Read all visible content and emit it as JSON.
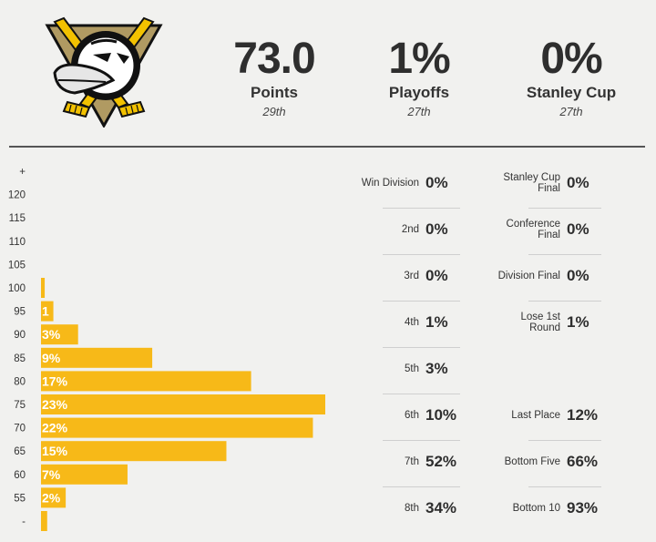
{
  "header": {
    "points": {
      "value": "73.0",
      "label": "Points",
      "rank": "29th"
    },
    "playoffs": {
      "value": "1%",
      "label": "Playoffs",
      "rank": "27th"
    },
    "cup": {
      "value": "0%",
      "label": "Stanley Cup",
      "rank": "27th"
    }
  },
  "colors": {
    "bar": "#f7b918",
    "logo_gold": "#b09a62",
    "logo_black": "#111111"
  },
  "chart_data": {
    "type": "bar",
    "orientation": "horizontal",
    "title": "",
    "xlabel": "",
    "ylabel": "",
    "tick_labels": [
      "+",
      "120",
      "115",
      "110",
      "105",
      "100",
      "95",
      "90",
      "85",
      "80",
      "75",
      "70",
      "65",
      "60",
      "55",
      "-"
    ],
    "categories": [
      "100",
      "95",
      "90",
      "85",
      "80",
      "75",
      "70",
      "65",
      "60",
      "55",
      "-"
    ],
    "values": [
      0.3,
      1,
      3,
      9,
      17,
      23,
      22,
      15,
      7,
      2,
      0.5
    ],
    "data_labels": [
      "",
      "1",
      "3%",
      "9%",
      "17%",
      "23%",
      "22%",
      "15%",
      "7%",
      "2%",
      ""
    ],
    "xlim": [
      0,
      25
    ],
    "grid": false,
    "legend": "none"
  },
  "division": [
    {
      "label": "Win Division",
      "value": "0%"
    },
    {
      "label": "2nd",
      "value": "0%"
    },
    {
      "label": "3rd",
      "value": "0%"
    },
    {
      "label": "4th",
      "value": "1%"
    },
    {
      "label": "5th",
      "value": "3%"
    },
    {
      "label": "6th",
      "value": "10%"
    },
    {
      "label": "7th",
      "value": "52%"
    },
    {
      "label": "8th",
      "value": "34%"
    }
  ],
  "playoff_rounds": [
    {
      "label": "Stanley Cup Final",
      "value": "0%"
    },
    {
      "label": "Conference Final",
      "value": "0%"
    },
    {
      "label": "Division Final",
      "value": "0%"
    },
    {
      "label": "Lose 1st Round",
      "value": "1%"
    }
  ],
  "bottom": [
    {
      "label": "Last Place",
      "value": "12%"
    },
    {
      "label": "Bottom Five",
      "value": "66%"
    },
    {
      "label": "Bottom 10",
      "value": "93%"
    }
  ]
}
